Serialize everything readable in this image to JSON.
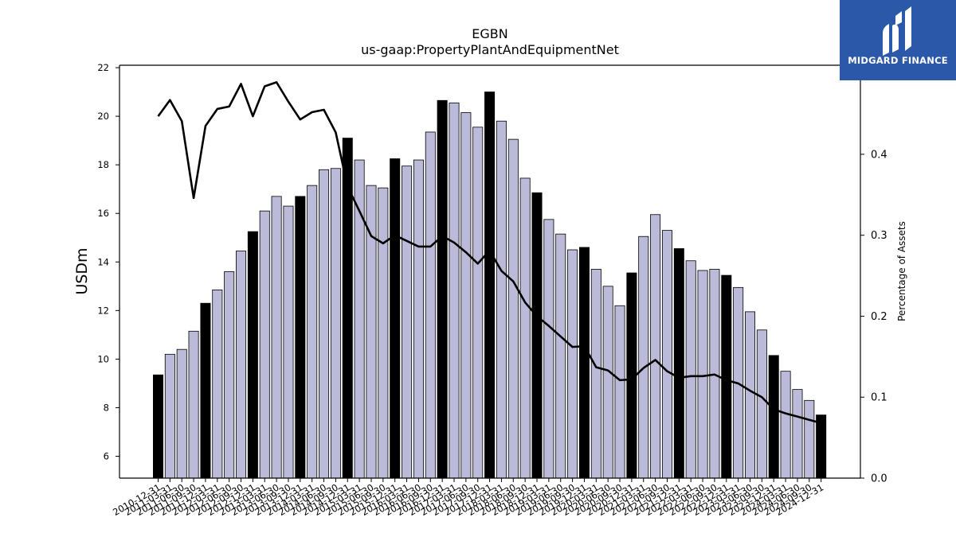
{
  "logo": {
    "text": "MIDGARD FINANCE",
    "background": "#2b58a9"
  },
  "chart_data": {
    "type": "bar",
    "title": "EGBN",
    "subtitle": "us-gaap:PropertyPlantAndEquipmentNet",
    "ylabel": "USDm",
    "y2label": "Percentage of Assets",
    "ylim": [
      5.1,
      22.1
    ],
    "y2lim": [
      0.0,
      0.51
    ],
    "yticks": [
      "6",
      "8",
      "10",
      "12",
      "14",
      "16",
      "18",
      "20",
      "22"
    ],
    "y2ticks": [
      "0.0",
      "0.1",
      "0.2",
      "0.3",
      "0.4"
    ],
    "colors": {
      "q4_bar": "#000000",
      "other_bar": "#bcbad9",
      "line": "#000000"
    },
    "categories": [
      "2010-12-31",
      "2011-03-31",
      "2011-06-30",
      "2011-09-30",
      "2011-12-31",
      "2012-03-31",
      "2012-06-30",
      "2012-09-30",
      "2012-12-31",
      "2013-03-31",
      "2013-06-30",
      "2013-09-30",
      "2013-12-31",
      "2014-03-31",
      "2014-06-30",
      "2014-09-30",
      "2014-12-31",
      "2015-03-31",
      "2015-06-30",
      "2015-09-30",
      "2015-12-31",
      "2016-03-31",
      "2016-06-30",
      "2016-09-30",
      "2016-12-31",
      "2017-03-31",
      "2017-06-30",
      "2017-09-30",
      "2017-12-31",
      "2018-03-31",
      "2018-06-30",
      "2018-09-30",
      "2018-12-31",
      "2019-03-31",
      "2019-06-30",
      "2019-09-30",
      "2019-12-31",
      "2020-03-31",
      "2020-06-30",
      "2020-09-30",
      "2020-12-31",
      "2021-03-31",
      "2021-06-30",
      "2021-09-30",
      "2021-12-31",
      "2022-03-31",
      "2022-06-30",
      "2022-09-30",
      "2022-12-31",
      "2023-03-31",
      "2023-06-30",
      "2023-09-30",
      "2023-12-31",
      "2024-03-31",
      "2024-06-30",
      "2024-09-30",
      "2024-12-31"
    ],
    "series": [
      {
        "name": "",
        "kind": "bar",
        "axis": "left",
        "values": [
          9.35,
          10.2,
          10.4,
          11.15,
          12.3,
          12.85,
          13.6,
          14.45,
          15.25,
          16.1,
          16.7,
          16.3,
          16.7,
          17.15,
          17.8,
          17.85,
          19.1,
          18.2,
          17.15,
          17.05,
          18.25,
          17.95,
          18.2,
          19.35,
          20.65,
          20.55,
          20.15,
          19.55,
          21.0,
          19.8,
          19.05,
          17.45,
          16.85,
          15.75,
          15.15,
          14.5,
          14.6,
          13.7,
          13.0,
          12.2,
          13.55,
          15.05,
          15.95,
          15.3,
          14.55,
          14.05,
          13.65,
          13.7,
          13.45,
          12.95,
          11.95,
          11.2,
          10.15,
          9.5,
          8.75,
          8.3,
          7.7
        ]
      },
      {
        "name": "",
        "kind": "line",
        "axis": "right",
        "values": [
          0.447,
          0.467,
          0.441,
          0.346,
          0.435,
          0.456,
          0.459,
          0.487,
          0.447,
          0.484,
          0.489,
          0.465,
          0.443,
          0.452,
          0.455,
          0.427,
          0.36,
          0.33,
          0.299,
          0.29,
          0.3,
          0.293,
          0.286,
          0.286,
          0.299,
          0.291,
          0.279,
          0.265,
          0.281,
          0.256,
          0.243,
          0.217,
          0.2,
          0.188,
          0.175,
          0.162,
          0.163,
          0.137,
          0.133,
          0.121,
          0.122,
          0.136,
          0.146,
          0.132,
          0.124,
          0.126,
          0.126,
          0.128,
          0.121,
          0.117,
          0.108,
          0.1,
          0.085,
          0.08,
          0.076,
          0.072,
          0.068
        ]
      }
    ]
  }
}
